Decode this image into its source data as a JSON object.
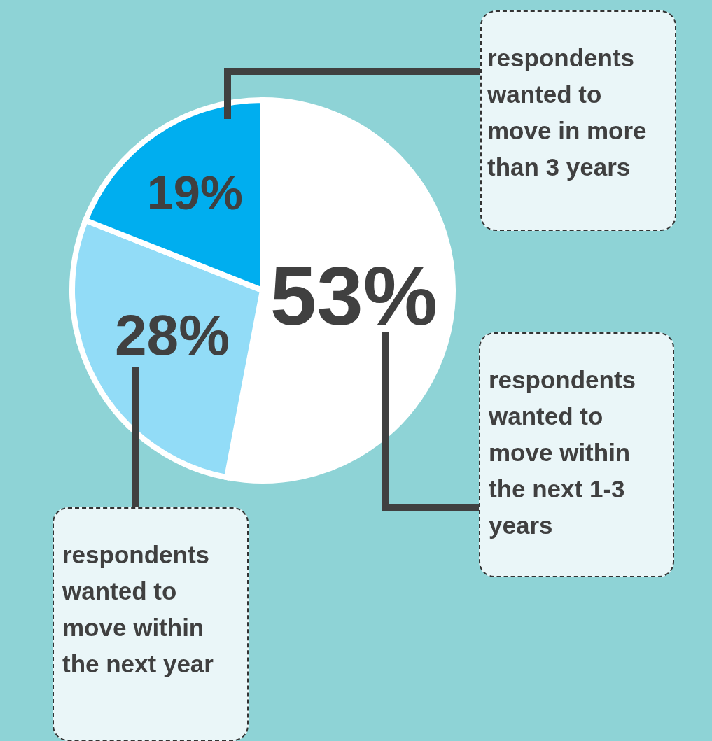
{
  "chart_data": {
    "type": "pie",
    "categories": [
      "respondents wanted to move within the next 1-3 years",
      "respondents wanted to move within the next year",
      "respondents wanted to move in more than 3 years"
    ],
    "values": [
      53,
      28,
      19
    ],
    "colors": [
      "#ffffff",
      "#92dcf7",
      "#00aeef"
    ],
    "value_labels": [
      "53%",
      "28%",
      "19%"
    ]
  }
}
